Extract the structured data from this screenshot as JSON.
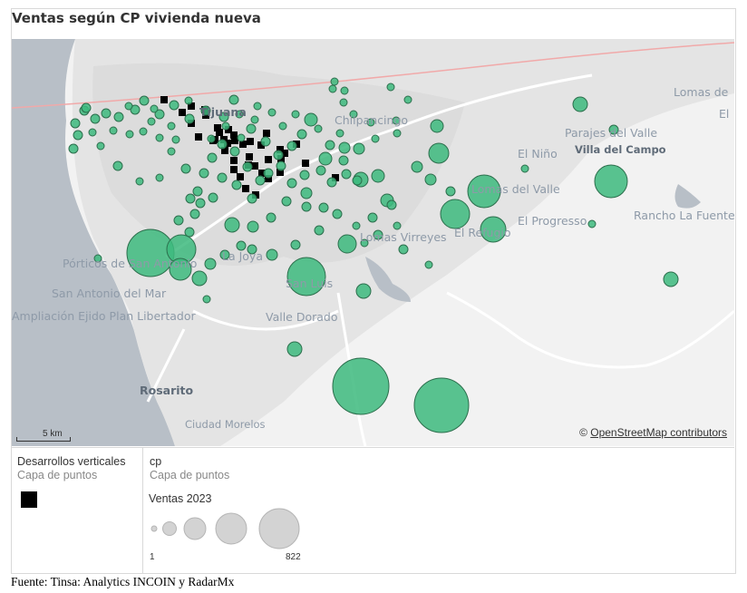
{
  "title": "Ventas según CP vivienda nueva",
  "map": {
    "place_labels": [
      {
        "text": "Tijuana",
        "style": "dark"
      },
      {
        "text": "Chilpancingo",
        "style": "normal"
      },
      {
        "text": "Lomas de",
        "style": "normal"
      },
      {
        "text": "El",
        "style": "normal"
      },
      {
        "text": "Parajes del Valle",
        "style": "normal"
      },
      {
        "text": "Villa del Campo",
        "style": "dark"
      },
      {
        "text": "El Niño",
        "style": "normal"
      },
      {
        "text": "Lomas del Valle",
        "style": "normal"
      },
      {
        "text": "El Progresso",
        "style": "normal"
      },
      {
        "text": "Rancho La Fuente",
        "style": "normal"
      },
      {
        "text": "Lomas Virreyes",
        "style": "normal"
      },
      {
        "text": "El Refugio",
        "style": "normal"
      },
      {
        "text": "Pórticos de San Antonio",
        "style": "normal"
      },
      {
        "text": "La Joya",
        "style": "normal"
      },
      {
        "text": "San Luis",
        "style": "normal"
      },
      {
        "text": "San Antonio del Mar",
        "style": "normal"
      },
      {
        "text": "Ampliación Ejido Plan Libertador",
        "style": "normal"
      },
      {
        "text": "Valle Dorado",
        "style": "normal"
      },
      {
        "text": "Rosarito",
        "style": "dark"
      },
      {
        "text": "Ciudad Morelos",
        "style": "normal"
      }
    ],
    "scale_label": "5 km",
    "credit_symbol": "©",
    "credit_link": "OpenStreetMap contributors",
    "colors": {
      "point": "#3dba7e",
      "point_stroke": "#2c6e4c",
      "vertical_marker": "#000000",
      "water": "#b8bfc7",
      "land": "#f2f2f2"
    }
  },
  "legend": {
    "layer1_title": "Desarrollos verticales",
    "layer1_sub": "Capa de puntos",
    "layer2_title": "cp",
    "layer2_sub": "Capa de puntos",
    "size_title": "Ventas 2023",
    "size_min_label": "1",
    "size_max_label": "822"
  },
  "source": "Fuente: Tinsa: Analytics INCOIN y RadarMx"
}
